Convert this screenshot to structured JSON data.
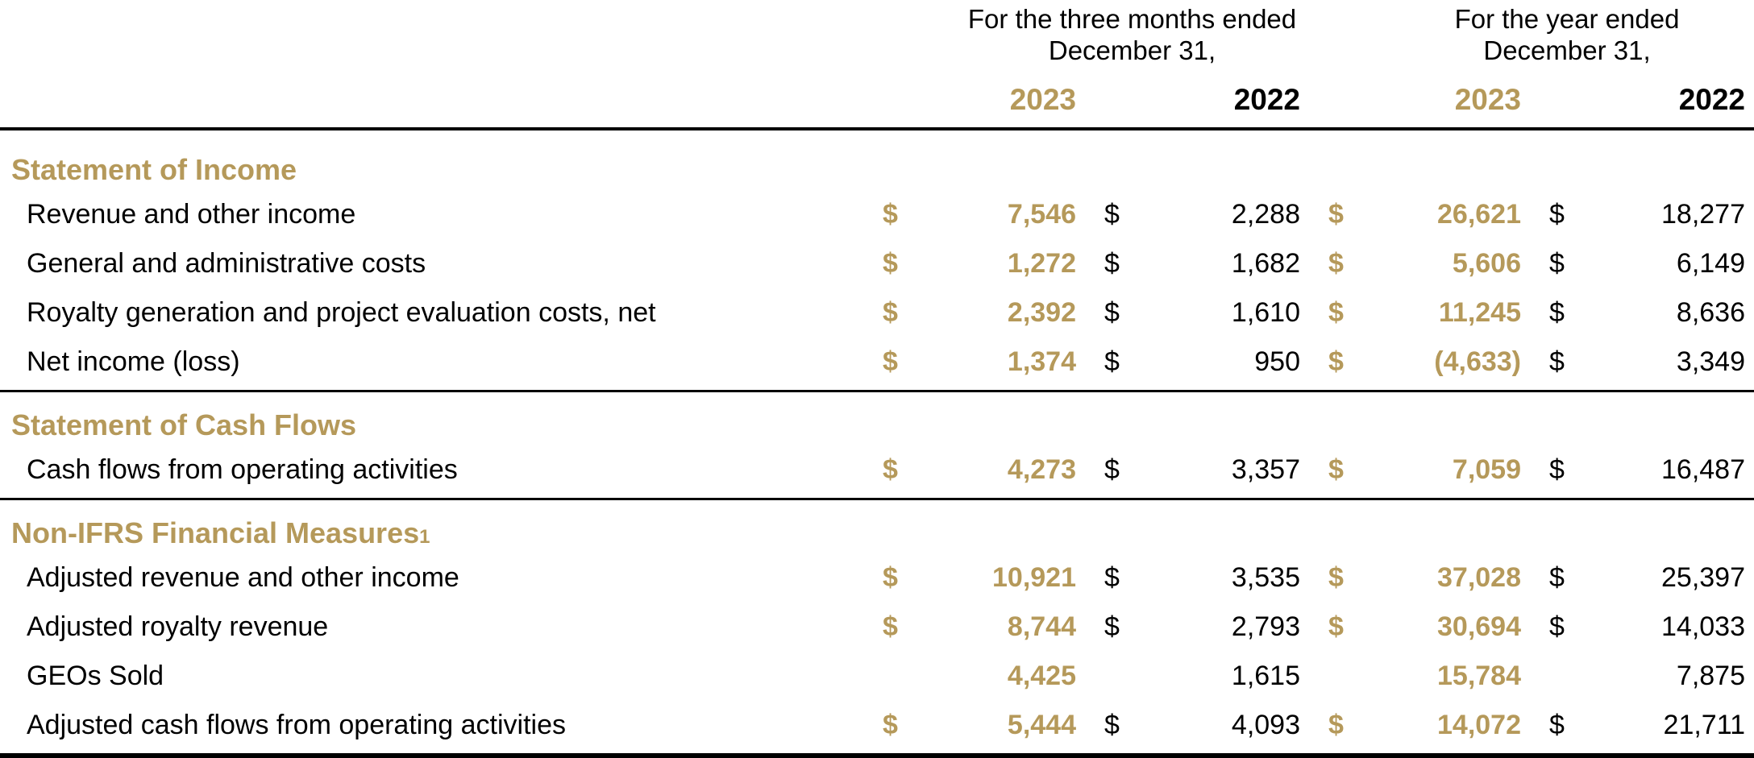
{
  "table": {
    "currency_symbol": "$",
    "colors": {
      "gold": "#B5995A",
      "text": "#000000"
    },
    "col_groups": [
      {
        "title_line1": "For the three months ended",
        "title_line2": "December 31,"
      },
      {
        "title_line1": "For the year ended",
        "title_line2": "December 31,"
      }
    ],
    "year_headers": [
      {
        "label": "2023",
        "highlight": true
      },
      {
        "label": "2022",
        "highlight": false
      },
      {
        "label": "2023",
        "highlight": true
      },
      {
        "label": "2022",
        "highlight": false
      }
    ],
    "sections": [
      {
        "heading": "Statement of Income",
        "heading_superscript": "",
        "rows": [
          {
            "label": "Revenue and other income",
            "dollar": true,
            "values": [
              "7,546",
              "2,288",
              "26,621",
              "18,277"
            ]
          },
          {
            "label": "General and administrative costs",
            "dollar": true,
            "values": [
              "1,272",
              "1,682",
              "5,606",
              "6,149"
            ]
          },
          {
            "label": "Royalty generation and project evaluation costs, net",
            "dollar": true,
            "values": [
              "2,392",
              "1,610",
              "11,245",
              "8,636"
            ]
          },
          {
            "label": "Net income (loss)",
            "dollar": true,
            "values": [
              "1,374",
              "950",
              "(4,633)",
              "3,349"
            ]
          }
        ]
      },
      {
        "heading": "Statement of Cash Flows",
        "heading_superscript": "",
        "rows": [
          {
            "label": "Cash flows from operating activities",
            "dollar": true,
            "values": [
              "4,273",
              "3,357",
              "7,059",
              "16,487"
            ]
          }
        ]
      },
      {
        "heading": "Non-IFRS Financial Measures",
        "heading_superscript": "1",
        "rows": [
          {
            "label": "Adjusted revenue and other income",
            "dollar": true,
            "values": [
              "10,921",
              "3,535",
              "37,028",
              "25,397"
            ]
          },
          {
            "label": "Adjusted royalty revenue",
            "dollar": true,
            "values": [
              "8,744",
              "2,793",
              "30,694",
              "14,033"
            ]
          },
          {
            "label": "GEOs Sold",
            "dollar": false,
            "values": [
              "4,425",
              "1,615",
              "15,784",
              "7,875"
            ]
          },
          {
            "label": "Adjusted cash flows from operating activities",
            "dollar": true,
            "values": [
              "5,444",
              "4,093",
              "14,072",
              "21,711"
            ]
          }
        ]
      }
    ]
  }
}
